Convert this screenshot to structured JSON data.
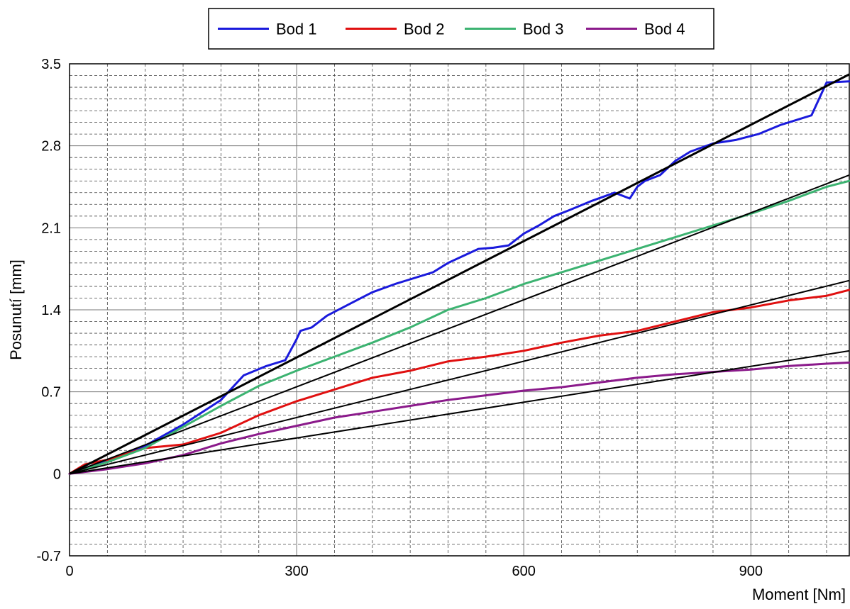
{
  "chart_data": {
    "type": "line",
    "xlabel": "Moment [Nm]",
    "ylabel": "Posunutí [mm]",
    "xlim": [
      0,
      1030
    ],
    "ylim": [
      -0.7,
      3.5
    ],
    "x_ticks": [
      "0",
      "300",
      "600",
      "900"
    ],
    "y_ticks": [
      "3.5",
      "2.8",
      "2.1",
      "1.4",
      "0.7",
      "0",
      "-0.7"
    ],
    "grid": true,
    "legend_position": "top",
    "series": [
      {
        "name": "Bod 1",
        "color": "#1a1adc",
        "x": [
          0,
          30,
          60,
          100,
          150,
          200,
          230,
          260,
          285,
          300,
          305,
          320,
          340,
          370,
          400,
          430,
          450,
          480,
          500,
          520,
          540,
          560,
          580,
          600,
          620,
          640,
          660,
          690,
          720,
          740,
          750,
          760,
          780,
          800,
          820,
          850,
          880,
          910,
          940,
          960,
          980,
          1000,
          1030
        ],
        "values": [
          0,
          0.07,
          0.14,
          0.24,
          0.42,
          0.63,
          0.84,
          0.92,
          0.97,
          1.15,
          1.22,
          1.25,
          1.35,
          1.45,
          1.55,
          1.62,
          1.66,
          1.72,
          1.8,
          1.86,
          1.92,
          1.93,
          1.95,
          2.05,
          2.12,
          2.2,
          2.25,
          2.33,
          2.4,
          2.35,
          2.45,
          2.5,
          2.55,
          2.67,
          2.75,
          2.82,
          2.85,
          2.9,
          2.98,
          3.02,
          3.06,
          3.34,
          3.35
        ]
      },
      {
        "name": "Bod 2",
        "color": "#e01010",
        "x": [
          0,
          20,
          50,
          100,
          150,
          200,
          250,
          300,
          350,
          400,
          450,
          500,
          550,
          600,
          650,
          700,
          750,
          800,
          850,
          900,
          950,
          1000,
          1030
        ],
        "values": [
          0,
          0.08,
          0.12,
          0.22,
          0.25,
          0.35,
          0.5,
          0.62,
          0.72,
          0.82,
          0.88,
          0.96,
          1.0,
          1.05,
          1.12,
          1.18,
          1.22,
          1.3,
          1.38,
          1.42,
          1.48,
          1.52,
          1.57
        ]
      },
      {
        "name": "Bod 3",
        "color": "#3cb371",
        "x": [
          0,
          50,
          100,
          150,
          200,
          250,
          300,
          350,
          400,
          450,
          500,
          550,
          600,
          650,
          700,
          750,
          800,
          850,
          900,
          950,
          1000,
          1030
        ],
        "values": [
          0,
          0.1,
          0.22,
          0.4,
          0.58,
          0.75,
          0.88,
          1.0,
          1.12,
          1.25,
          1.4,
          1.5,
          1.62,
          1.72,
          1.82,
          1.92,
          2.02,
          2.12,
          2.22,
          2.33,
          2.45,
          2.5
        ]
      },
      {
        "name": "Bod 4",
        "color": "#8b1a8b",
        "x": [
          0,
          50,
          100,
          150,
          200,
          250,
          300,
          350,
          400,
          450,
          500,
          550,
          600,
          650,
          700,
          750,
          800,
          850,
          900,
          950,
          1000,
          1030
        ],
        "values": [
          0,
          0.04,
          0.09,
          0.16,
          0.26,
          0.34,
          0.41,
          0.48,
          0.53,
          0.58,
          0.63,
          0.67,
          0.71,
          0.74,
          0.78,
          0.82,
          0.85,
          0.87,
          0.89,
          0.92,
          0.94,
          0.95
        ]
      }
    ],
    "fit_lines": [
      {
        "color": "#000000",
        "x": [
          0,
          1030
        ],
        "values": [
          0,
          3.41
        ]
      },
      {
        "color": "#000000",
        "x": [
          0,
          1030
        ],
        "values": [
          0,
          2.55
        ]
      },
      {
        "color": "#000000",
        "x": [
          0,
          1030
        ],
        "values": [
          0,
          1.65
        ]
      },
      {
        "color": "#000000",
        "x": [
          0,
          1030
        ],
        "values": [
          0,
          1.05
        ]
      }
    ]
  }
}
